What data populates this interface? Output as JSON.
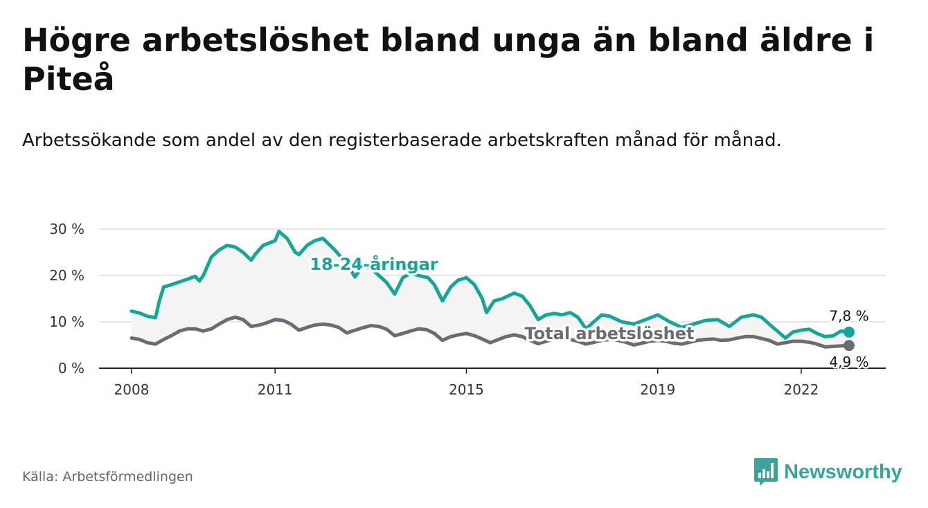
{
  "title": "Högre arbetslöshet bland unga än bland äldre i Piteå",
  "subtitle": "Arbetssökande som andel av den registerbaserade arbetskraften månad för månad.",
  "source": "Källa: Arbetsförmedlingen",
  "brand": {
    "name": "Newsworthy",
    "icon": "newsworthy-logo-icon",
    "color": "#3aa39a"
  },
  "chart_data": {
    "type": "line",
    "xlabel": "",
    "ylabel": "",
    "xlim": [
      2008.0,
      2023.0
    ],
    "ylim": [
      0,
      30
    ],
    "y_ticks": [
      0,
      10,
      20,
      30
    ],
    "y_tick_labels": [
      "0 %",
      "10 %",
      "20 %",
      "30 %"
    ],
    "x_ticks": [
      2008,
      2011,
      2015,
      2019,
      2022
    ],
    "x_tick_labels": [
      "2008",
      "2011",
      "2015",
      "2019",
      "2022"
    ],
    "grid": "horizontal",
    "series": [
      {
        "name": "18-24-åringar",
        "label": "18-24-åringar",
        "color": "#16a596",
        "end_label": "7,8 %",
        "points": [
          [
            2008.0,
            12.3
          ],
          [
            2008.17,
            11.9
          ],
          [
            2008.33,
            11.2
          ],
          [
            2008.5,
            10.9
          ],
          [
            2008.58,
            14.5
          ],
          [
            2008.67,
            17.5
          ],
          [
            2008.83,
            18.0
          ],
          [
            2009.0,
            18.6
          ],
          [
            2009.17,
            19.2
          ],
          [
            2009.33,
            19.8
          ],
          [
            2009.42,
            18.8
          ],
          [
            2009.5,
            20.0
          ],
          [
            2009.67,
            24.0
          ],
          [
            2009.83,
            25.5
          ],
          [
            2010.0,
            26.5
          ],
          [
            2010.17,
            26.1
          ],
          [
            2010.33,
            25.0
          ],
          [
            2010.5,
            23.3
          ],
          [
            2010.58,
            24.5
          ],
          [
            2010.75,
            26.5
          ],
          [
            2011.0,
            27.5
          ],
          [
            2011.08,
            29.5
          ],
          [
            2011.25,
            28.0
          ],
          [
            2011.42,
            25.0
          ],
          [
            2011.5,
            24.5
          ],
          [
            2011.67,
            26.5
          ],
          [
            2011.83,
            27.5
          ],
          [
            2012.0,
            28.0
          ],
          [
            2012.25,
            25.5
          ],
          [
            2012.5,
            22.5
          ],
          [
            2012.67,
            19.7
          ],
          [
            2012.83,
            22.0
          ],
          [
            2013.0,
            21.5
          ],
          [
            2013.17,
            20.0
          ],
          [
            2013.33,
            18.5
          ],
          [
            2013.5,
            16.0
          ],
          [
            2013.67,
            19.5
          ],
          [
            2013.83,
            20.5
          ],
          [
            2014.0,
            20.0
          ],
          [
            2014.2,
            19.5
          ],
          [
            2014.33,
            18.0
          ],
          [
            2014.5,
            14.5
          ],
          [
            2014.67,
            17.5
          ],
          [
            2014.83,
            19.0
          ],
          [
            2015.0,
            19.5
          ],
          [
            2015.17,
            18.0
          ],
          [
            2015.33,
            15.0
          ],
          [
            2015.42,
            12.0
          ],
          [
            2015.58,
            14.5
          ],
          [
            2015.75,
            15.0
          ],
          [
            2016.0,
            16.2
          ],
          [
            2016.17,
            15.5
          ],
          [
            2016.33,
            13.5
          ],
          [
            2016.5,
            10.5
          ],
          [
            2016.67,
            11.5
          ],
          [
            2016.83,
            11.8
          ],
          [
            2017.0,
            11.5
          ],
          [
            2017.17,
            12.0
          ],
          [
            2017.33,
            11.0
          ],
          [
            2017.5,
            8.5
          ],
          [
            2017.83,
            11.5
          ],
          [
            2018.0,
            11.2
          ],
          [
            2018.25,
            10.0
          ],
          [
            2018.5,
            9.5
          ],
          [
            2018.75,
            10.5
          ],
          [
            2019.0,
            11.5
          ],
          [
            2019.25,
            10.0
          ],
          [
            2019.5,
            8.8
          ],
          [
            2019.75,
            9.5
          ],
          [
            2020.0,
            10.3
          ],
          [
            2020.25,
            10.5
          ],
          [
            2020.5,
            9.0
          ],
          [
            2020.75,
            11.0
          ],
          [
            2021.0,
            11.5
          ],
          [
            2021.17,
            11.0
          ],
          [
            2021.33,
            9.5
          ],
          [
            2021.5,
            8.0
          ],
          [
            2021.67,
            6.5
          ],
          [
            2021.83,
            7.8
          ],
          [
            2022.0,
            8.2
          ],
          [
            2022.17,
            8.4
          ],
          [
            2022.33,
            7.5
          ],
          [
            2022.5,
            6.8
          ],
          [
            2022.67,
            7.0
          ],
          [
            2022.83,
            8.0
          ],
          [
            2023.0,
            7.8
          ]
        ]
      },
      {
        "name": "Total arbetslöshet",
        "label": "Total arbetslöshet",
        "color": "#6b6b72",
        "end_label": "4,9 %",
        "points": [
          [
            2008.0,
            6.5
          ],
          [
            2008.17,
            6.2
          ],
          [
            2008.33,
            5.5
          ],
          [
            2008.5,
            5.2
          ],
          [
            2008.67,
            6.2
          ],
          [
            2008.83,
            7.0
          ],
          [
            2009.0,
            8.0
          ],
          [
            2009.17,
            8.5
          ],
          [
            2009.33,
            8.5
          ],
          [
            2009.5,
            8.0
          ],
          [
            2009.67,
            8.5
          ],
          [
            2009.83,
            9.5
          ],
          [
            2010.0,
            10.5
          ],
          [
            2010.17,
            11.0
          ],
          [
            2010.33,
            10.5
          ],
          [
            2010.5,
            9.0
          ],
          [
            2010.67,
            9.3
          ],
          [
            2010.83,
            9.8
          ],
          [
            2011.0,
            10.5
          ],
          [
            2011.17,
            10.3
          ],
          [
            2011.33,
            9.5
          ],
          [
            2011.5,
            8.2
          ],
          [
            2011.67,
            8.8
          ],
          [
            2011.83,
            9.3
          ],
          [
            2012.0,
            9.5
          ],
          [
            2012.17,
            9.3
          ],
          [
            2012.33,
            8.8
          ],
          [
            2012.5,
            7.6
          ],
          [
            2012.67,
            8.2
          ],
          [
            2012.83,
            8.7
          ],
          [
            2013.0,
            9.2
          ],
          [
            2013.17,
            9.0
          ],
          [
            2013.33,
            8.4
          ],
          [
            2013.5,
            7.0
          ],
          [
            2013.67,
            7.5
          ],
          [
            2013.83,
            8.0
          ],
          [
            2014.0,
            8.5
          ],
          [
            2014.17,
            8.3
          ],
          [
            2014.33,
            7.5
          ],
          [
            2014.5,
            6.0
          ],
          [
            2014.67,
            6.8
          ],
          [
            2014.83,
            7.2
          ],
          [
            2015.0,
            7.5
          ],
          [
            2015.17,
            7.0
          ],
          [
            2015.33,
            6.3
          ],
          [
            2015.5,
            5.5
          ],
          [
            2015.67,
            6.2
          ],
          [
            2015.83,
            6.8
          ],
          [
            2016.0,
            7.2
          ],
          [
            2016.17,
            6.8
          ],
          [
            2016.33,
            6.0
          ],
          [
            2016.5,
            5.3
          ],
          [
            2016.67,
            5.8
          ],
          [
            2016.83,
            6.3
          ],
          [
            2017.0,
            6.5
          ],
          [
            2017.17,
            6.2
          ],
          [
            2017.33,
            5.8
          ],
          [
            2017.5,
            5.2
          ],
          [
            2017.67,
            5.6
          ],
          [
            2017.83,
            6.0
          ],
          [
            2018.0,
            6.2
          ],
          [
            2018.17,
            6.0
          ],
          [
            2018.33,
            5.6
          ],
          [
            2018.5,
            5.0
          ],
          [
            2018.67,
            5.4
          ],
          [
            2018.83,
            5.8
          ],
          [
            2019.0,
            6.0
          ],
          [
            2019.17,
            5.8
          ],
          [
            2019.33,
            5.4
          ],
          [
            2019.5,
            5.2
          ],
          [
            2019.67,
            5.6
          ],
          [
            2019.83,
            6.0
          ],
          [
            2020.0,
            6.2
          ],
          [
            2020.17,
            6.3
          ],
          [
            2020.33,
            6.0
          ],
          [
            2020.5,
            6.1
          ],
          [
            2020.67,
            6.5
          ],
          [
            2020.83,
            6.8
          ],
          [
            2021.0,
            6.8
          ],
          [
            2021.17,
            6.4
          ],
          [
            2021.33,
            6.0
          ],
          [
            2021.5,
            5.2
          ],
          [
            2021.67,
            5.5
          ],
          [
            2021.83,
            5.8
          ],
          [
            2022.0,
            5.8
          ],
          [
            2022.17,
            5.6
          ],
          [
            2022.33,
            5.2
          ],
          [
            2022.5,
            4.6
          ],
          [
            2022.67,
            4.7
          ],
          [
            2022.83,
            4.8
          ],
          [
            2023.0,
            4.9
          ]
        ]
      }
    ]
  }
}
